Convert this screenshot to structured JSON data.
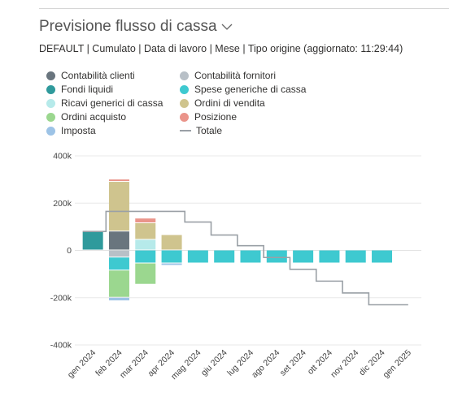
{
  "header": {
    "title": "Previsione flusso di cassa",
    "subtitle": "DEFAULT | Cumulato | Data di lavoro | Mese | Tipo origine (aggiornato: 11:29:44)"
  },
  "legend": [
    {
      "name": "Contabilità clienti",
      "color": "#69757e",
      "shape": "dot"
    },
    {
      "name": "Contabilità fornitori",
      "color": "#b8c0c7",
      "shape": "dot"
    },
    {
      "name": "Fondi liquidi",
      "color": "#2f9a9c",
      "shape": "dot"
    },
    {
      "name": "Spese generiche di cassa",
      "color": "#3ec9d0",
      "shape": "dot"
    },
    {
      "name": "Ricavi generici di cassa",
      "color": "#b6eaea",
      "shape": "dot"
    },
    {
      "name": "Ordini di vendita",
      "color": "#cfc48e",
      "shape": "dot"
    },
    {
      "name": "Ordini acquisto",
      "color": "#9bd78f",
      "shape": "dot"
    },
    {
      "name": "Posizione",
      "color": "#ea948a",
      "shape": "dot"
    },
    {
      "name": "Imposta",
      "color": "#9dc3e6",
      "shape": "dot"
    },
    {
      "name": "Totale",
      "color": "#9aa0a6",
      "shape": "line"
    }
  ],
  "chart_data": {
    "type": "bar",
    "stacked": true,
    "categories": [
      "gen 2024",
      "feb 2024",
      "mar 2024",
      "apr 2024",
      "mag 2024",
      "giu 2024",
      "lug 2024",
      "ago 2024",
      "set 2024",
      "ott 2024",
      "nov 2024",
      "dic 2024",
      "gen 2025"
    ],
    "ylim": [
      -400000,
      400000
    ],
    "yticks": [
      400000,
      200000,
      0,
      -200000,
      -400000
    ],
    "ytick_labels": [
      "400k",
      "200k",
      "0",
      "-200k",
      "-400k"
    ],
    "grid": true,
    "legend_position": "top",
    "series": [
      {
        "name": "Fondi liquidi",
        "color": "#2f9a9c",
        "values": [
          78000,
          0,
          0,
          0,
          0,
          0,
          0,
          0,
          0,
          0,
          0,
          0,
          0
        ]
      },
      {
        "name": "Contabilità clienti",
        "color": "#69757e",
        "values": [
          0,
          80000,
          0,
          0,
          0,
          0,
          0,
          0,
          0,
          0,
          0,
          0,
          0
        ]
      },
      {
        "name": "Ricavi generici di cassa",
        "color": "#b6eaea",
        "values": [
          0,
          0,
          45000,
          0,
          0,
          0,
          0,
          0,
          0,
          0,
          0,
          0,
          0
        ]
      },
      {
        "name": "Ordini di vendita",
        "color": "#cfc48e",
        "values": [
          0,
          210000,
          70000,
          65000,
          0,
          0,
          0,
          0,
          0,
          0,
          0,
          0,
          0
        ]
      },
      {
        "name": "Posizione",
        "color": "#ea948a",
        "values": [
          0,
          10000,
          20000,
          0,
          0,
          0,
          0,
          0,
          0,
          0,
          0,
          0,
          0
        ]
      },
      {
        "name": "Contabilità fornitori",
        "color": "#b8c0c7",
        "values": [
          0,
          -30000,
          0,
          0,
          0,
          0,
          0,
          0,
          0,
          0,
          0,
          0,
          0
        ]
      },
      {
        "name": "Spese generiche di cassa",
        "color": "#3ec9d0",
        "values": [
          0,
          -55000,
          -55000,
          -55000,
          -55000,
          -55000,
          -55000,
          -55000,
          -55000,
          -55000,
          -55000,
          -55000,
          0
        ]
      },
      {
        "name": "Ordini acquisto",
        "color": "#9bd78f",
        "values": [
          0,
          -115000,
          -90000,
          0,
          0,
          0,
          0,
          0,
          0,
          0,
          0,
          0,
          0
        ]
      },
      {
        "name": "Imposta",
        "color": "#9dc3e6",
        "values": [
          0,
          -15000,
          0,
          -10000,
          0,
          0,
          0,
          0,
          0,
          0,
          0,
          0,
          0
        ]
      }
    ],
    "total": {
      "name": "Totale",
      "color": "#9aa0a6",
      "values": [
        80000,
        165000,
        165000,
        165000,
        120000,
        65000,
        20000,
        -30000,
        -80000,
        -130000,
        -180000,
        -230000,
        -230000
      ]
    }
  }
}
